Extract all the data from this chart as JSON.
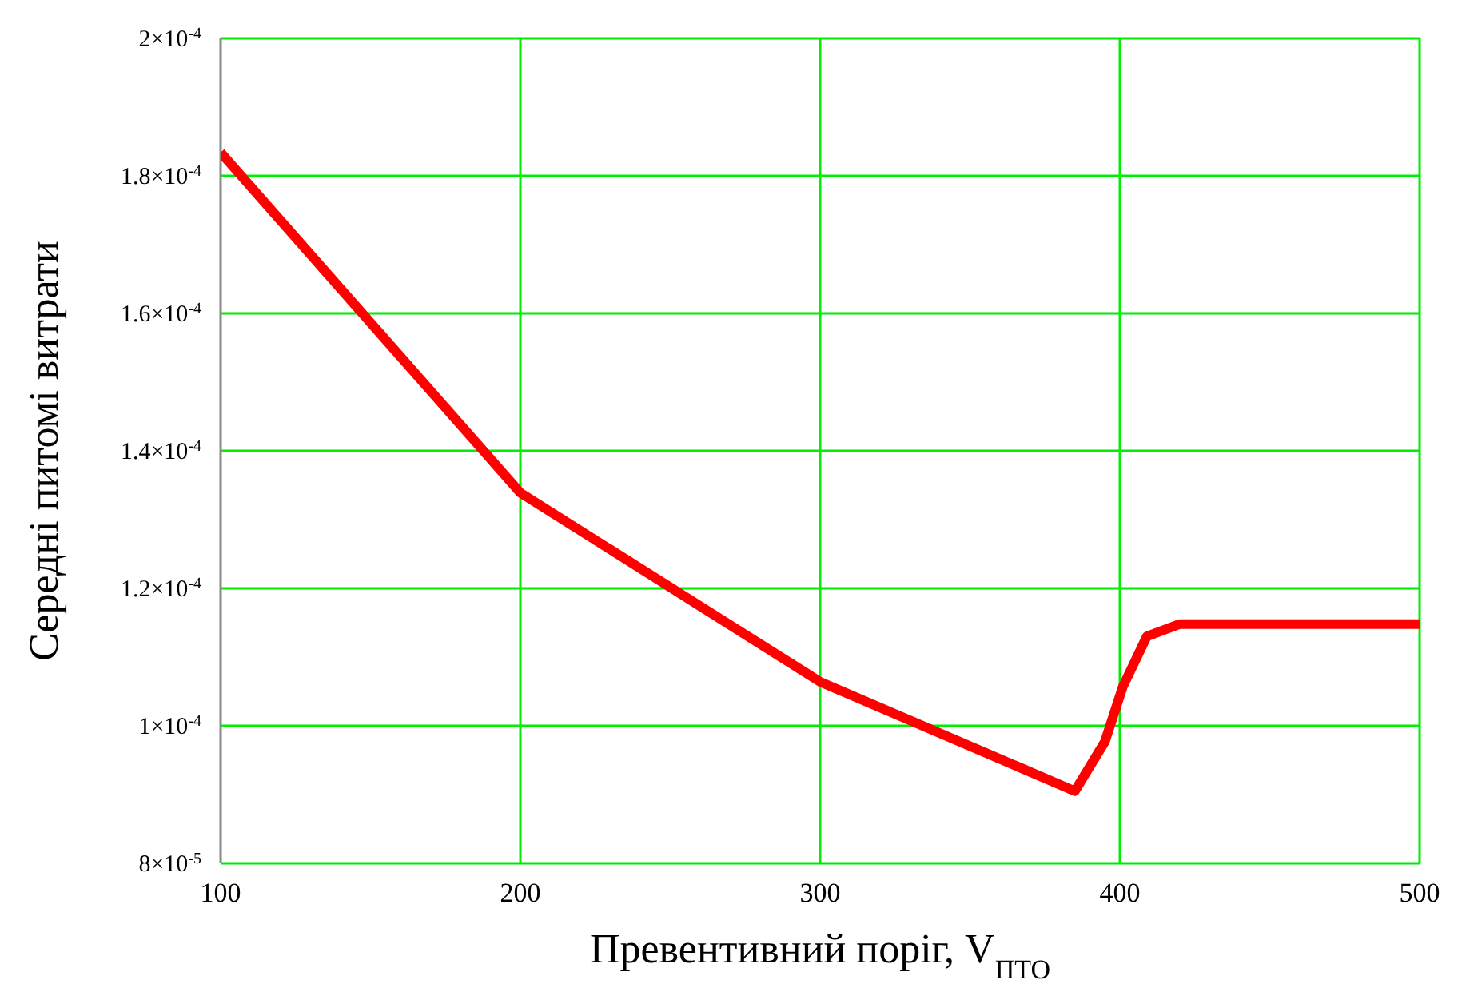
{
  "chart_data": {
    "type": "line",
    "xlabel": "Превентивний поріг, V$_{ПТО}$",
    "ylabel": "Середні питомі витрати",
    "x": [
      100,
      200,
      300,
      385,
      395,
      401,
      409,
      420,
      500
    ],
    "series": [
      {
        "color": "#ff0000",
        "values": [
          0.0001834,
          0.0001339,
          0.0001064,
          9.05e-05,
          9.77e-05,
          0.0001057,
          0.000113,
          0.0001148,
          0.0001148
        ]
      }
    ],
    "xlim": [
      100,
      500
    ],
    "xticks": [
      100,
      200,
      300,
      400,
      500
    ],
    "ylim": [
      8e-05,
      0.0002
    ],
    "yticks": [
      {
        "value": 8e-05,
        "label": "8×10$^{-5}$"
      },
      {
        "value": 0.0001,
        "label": "1×10$^{-4}$"
      },
      {
        "value": 0.00012,
        "label": "1.2×10$^{-4}$"
      },
      {
        "value": 0.00014,
        "label": "1.4×10$^{-4}$"
      },
      {
        "value": 0.00016,
        "label": "1.6×10$^{-4}$"
      },
      {
        "value": 0.00018,
        "label": "1.8×10$^{-4}$"
      },
      {
        "value": 0.0002,
        "label": "2×10$^{-4}$"
      }
    ],
    "grid": true,
    "legend": false,
    "marker": "none",
    "line_style": "solid"
  }
}
